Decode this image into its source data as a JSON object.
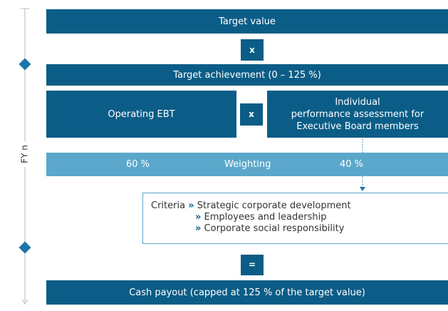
{
  "timeline_label": "FY n",
  "target_value": "Target value",
  "operator_multiply": "x",
  "target_achievement": "Target achievement (0 – 125 %)",
  "operating_ebt": "Operating EBT",
  "individual_assessment": [
    "Individual",
    "performance assessment for",
    "Executive Board members"
  ],
  "weighting": {
    "left": "60 %",
    "label": "Weighting",
    "right": "40 %"
  },
  "criteria": {
    "label": "Criteria",
    "bullet": "»",
    "items": [
      "Strategic corporate development",
      "Employees and leadership",
      "Corporate social responsibility"
    ]
  },
  "operator_equals": "=",
  "cash_payout": "Cash payout (capped at 125 % of the target value)"
}
